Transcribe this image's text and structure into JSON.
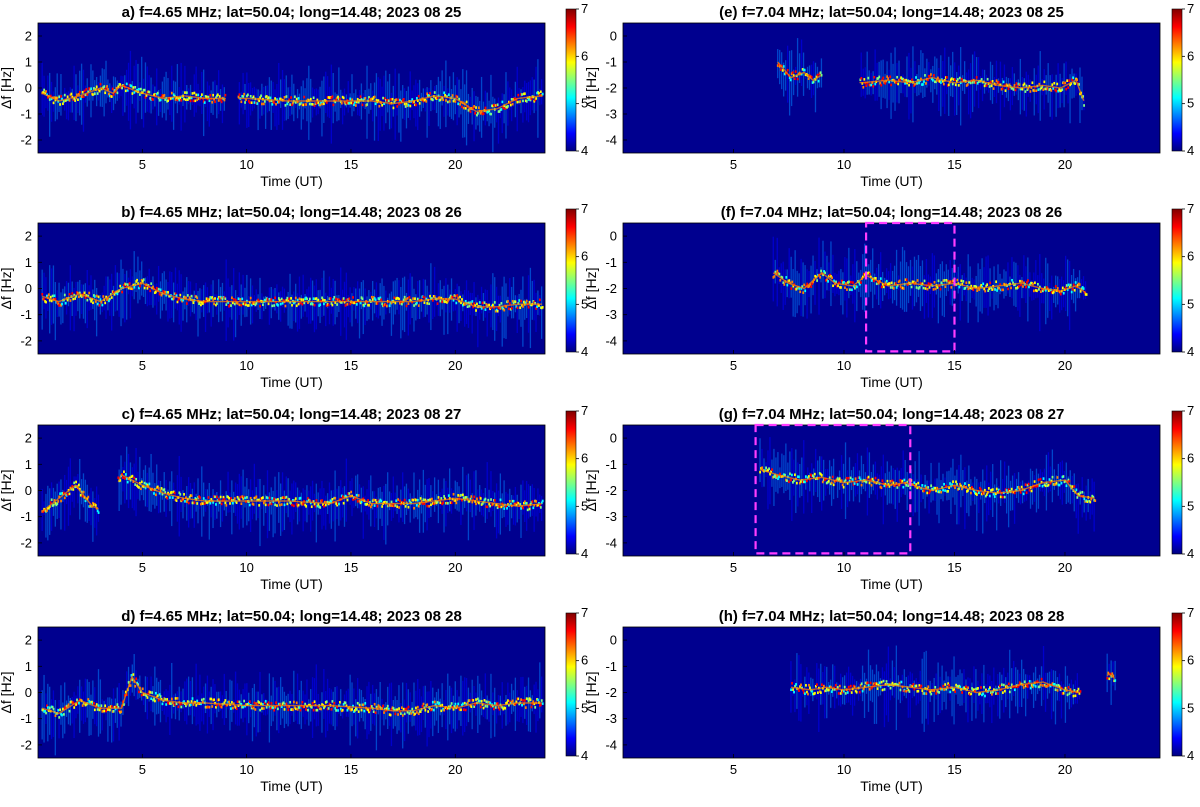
{
  "figure": {
    "colormap": [
      "#00007f",
      "#0000ff",
      "#0080ff",
      "#00ffff",
      "#80ff80",
      "#ffff00",
      "#ff8000",
      "#ff0000",
      "#800000"
    ],
    "background_color": "#00008f",
    "highlight_box_color": "#ff3dff"
  },
  "chart_data": [
    {
      "id": "a",
      "type": "heatmap",
      "title": "a) f=4.65 MHz;  lat=50.04; long=14.48; 2023 08 25",
      "xlabel": "Time (UT)",
      "ylabel": "Δf [Hz]",
      "xlim": [
        0,
        24.3
      ],
      "ylim": [
        -2.5,
        2.5
      ],
      "xticks": [
        5,
        10,
        15,
        20
      ],
      "xtick_labels": [
        "5",
        "10",
        "15",
        "20"
      ],
      "yticks": [
        -2,
        -1,
        0,
        1,
        2
      ],
      "ytick_labels": [
        "-2",
        "-1",
        "0",
        "1",
        "2"
      ],
      "colorbar": {
        "min": 4,
        "max": 7,
        "ticks": [
          4,
          5,
          6,
          7
        ],
        "tick_labels": [
          "4",
          "5",
          "6",
          "7"
        ]
      },
      "trace": {
        "t": [
          0.2,
          1,
          2,
          3,
          3.6,
          4,
          5,
          6,
          7,
          8,
          9,
          10,
          12,
          14,
          16,
          17,
          18,
          19,
          20,
          21,
          22,
          23,
          24.2
        ],
        "df": [
          -0.2,
          -0.5,
          -0.3,
          0.0,
          -0.2,
          0.1,
          -0.2,
          -0.4,
          -0.3,
          -0.4,
          -0.4,
          -0.4,
          -0.5,
          -0.5,
          -0.5,
          -0.6,
          -0.5,
          -0.3,
          -0.4,
          -0.9,
          -0.8,
          -0.4,
          -0.3
        ],
        "gaps": [
          [
            9.0,
            9.6
          ]
        ]
      },
      "highlight_boxes": []
    },
    {
      "id": "b",
      "type": "heatmap",
      "title": "b) f=4.65 MHz;  lat=50.04; long=14.48; 2023 08 26",
      "xlabel": "Time (UT)",
      "ylabel": "Δf [Hz]",
      "xlim": [
        0,
        24.3
      ],
      "ylim": [
        -2.5,
        2.5
      ],
      "xticks": [
        5,
        10,
        15,
        20
      ],
      "xtick_labels": [
        "5",
        "10",
        "15",
        "20"
      ],
      "yticks": [
        -2,
        -1,
        0,
        1,
        2
      ],
      "ytick_labels": [
        "-2",
        "-1",
        "0",
        "1",
        "2"
      ],
      "colorbar": {
        "min": 4,
        "max": 7,
        "ticks": [
          4,
          5,
          6,
          7
        ],
        "tick_labels": [
          "4",
          "5",
          "6",
          "7"
        ]
      },
      "trace": {
        "t": [
          0.2,
          1,
          2,
          3,
          4,
          5,
          6,
          7,
          8,
          10,
          12,
          14,
          16,
          18,
          19,
          20,
          21,
          22,
          23,
          24.2
        ],
        "df": [
          -0.3,
          -0.5,
          -0.2,
          -0.5,
          0.0,
          0.2,
          -0.2,
          -0.4,
          -0.5,
          -0.5,
          -0.5,
          -0.5,
          -0.5,
          -0.5,
          -0.4,
          -0.4,
          -0.7,
          -0.7,
          -0.6,
          -0.6
        ],
        "gaps": []
      },
      "highlight_boxes": []
    },
    {
      "id": "c",
      "type": "heatmap",
      "title": "c) f=4.65 MHz;  lat=50.04; long=14.48; 2023 08 27",
      "xlabel": "Time (UT)",
      "ylabel": "Δf [Hz]",
      "xlim": [
        0,
        24.3
      ],
      "ylim": [
        -2.5,
        2.5
      ],
      "xticks": [
        5,
        10,
        15,
        20
      ],
      "xtick_labels": [
        "5",
        "10",
        "15",
        "20"
      ],
      "yticks": [
        -2,
        -1,
        0,
        1,
        2
      ],
      "ytick_labels": [
        "-2",
        "-1",
        "0",
        "1",
        "2"
      ],
      "colorbar": {
        "min": 4,
        "max": 7,
        "ticks": [
          4,
          5,
          6,
          7
        ],
        "tick_labels": [
          "4",
          "5",
          "6",
          "7"
        ]
      },
      "trace": {
        "t": [
          0.2,
          1,
          1.8,
          2.6,
          3.2,
          4,
          5,
          6,
          7,
          8,
          10,
          12,
          14,
          15,
          16,
          18,
          20,
          22,
          23,
          24.2
        ],
        "df": [
          -0.8,
          -0.3,
          0.2,
          -0.6,
          -0.8,
          0.6,
          0.2,
          -0.1,
          -0.3,
          -0.4,
          -0.4,
          -0.4,
          -0.5,
          -0.2,
          -0.5,
          -0.5,
          -0.3,
          -0.5,
          -0.6,
          -0.5
        ],
        "gaps": [
          [
            2.9,
            3.8
          ]
        ]
      },
      "highlight_boxes": []
    },
    {
      "id": "d",
      "type": "heatmap",
      "title": "d) f=4.65 MHz;  lat=50.04; long=14.48; 2023 08 28",
      "xlabel": "Time (UT)",
      "ylabel": "Δf [Hz]",
      "xlim": [
        0,
        24.3
      ],
      "ylim": [
        -2.5,
        2.5
      ],
      "xticks": [
        5,
        10,
        15,
        20
      ],
      "xtick_labels": [
        "5",
        "10",
        "15",
        "20"
      ],
      "yticks": [
        -2,
        -1,
        0,
        1,
        2
      ],
      "ytick_labels": [
        "-2",
        "-1",
        "0",
        "1",
        "2"
      ],
      "colorbar": {
        "min": 4,
        "max": 7,
        "ticks": [
          4,
          5,
          6,
          7
        ],
        "tick_labels": [
          "4",
          "5",
          "6",
          "7"
        ]
      },
      "trace": {
        "t": [
          0.2,
          1,
          2,
          3,
          4,
          4.5,
          5,
          6,
          7,
          8,
          10,
          12,
          14,
          16,
          17,
          18,
          19,
          20,
          21,
          22,
          23,
          24.2
        ],
        "df": [
          -0.6,
          -0.8,
          -0.3,
          -0.6,
          -0.6,
          0.6,
          0.0,
          -0.3,
          -0.4,
          -0.4,
          -0.5,
          -0.5,
          -0.5,
          -0.6,
          -0.7,
          -0.7,
          -0.5,
          -0.6,
          -0.4,
          -0.5,
          -0.4,
          -0.4
        ],
        "gaps": []
      },
      "highlight_boxes": []
    },
    {
      "id": "e",
      "type": "heatmap",
      "title": "(e) f=7.04 MHz;  lat=50.04; long=14.48; 2023 08 25",
      "xlabel": "Time (UT)",
      "ylabel": "Δf [Hz]",
      "xlim": [
        0,
        24.3
      ],
      "ylim": [
        -4.5,
        0.5
      ],
      "xticks": [
        5,
        10,
        15,
        20
      ],
      "xtick_labels": [
        "5",
        "10",
        "15",
        "20"
      ],
      "yticks": [
        -4,
        -3,
        -2,
        -1,
        0
      ],
      "ytick_labels": [
        "-4",
        "-3",
        "-2",
        "-1",
        "0"
      ],
      "colorbar": {
        "min": 4,
        "max": 7,
        "ticks": [
          4,
          5,
          6,
          7
        ],
        "tick_labels": [
          "4",
          "5",
          "6",
          "7"
        ]
      },
      "trace": {
        "t": [
          7.0,
          7.6,
          8.2,
          8.6,
          9.0,
          10.8,
          12,
          13,
          14,
          15,
          16,
          17,
          18,
          19,
          19.8,
          20.5,
          20.9
        ],
        "df": [
          -1.0,
          -1.6,
          -1.4,
          -1.7,
          -1.5,
          -1.8,
          -1.7,
          -1.8,
          -1.6,
          -1.8,
          -1.7,
          -1.9,
          -2.0,
          -1.9,
          -2.0,
          -1.7,
          -2.6
        ],
        "gaps": [
          [
            9.0,
            10.7
          ]
        ]
      },
      "highlight_boxes": []
    },
    {
      "id": "f",
      "type": "heatmap",
      "title": "(f) f=7.04 MHz;  lat=50.04; long=14.48; 2023 08 26",
      "xlabel": "Time (UT)",
      "ylabel": "Δf [Hz]",
      "xlim": [
        0,
        24.3
      ],
      "ylim": [
        -4.5,
        0.5
      ],
      "xticks": [
        5,
        10,
        15,
        20
      ],
      "xtick_labels": [
        "5",
        "10",
        "15",
        "20"
      ],
      "yticks": [
        -4,
        -3,
        -2,
        -1,
        0
      ],
      "ytick_labels": [
        "-4",
        "-3",
        "-2",
        "-1",
        "0"
      ],
      "colorbar": {
        "min": 4,
        "max": 7,
        "ticks": [
          4,
          5,
          6,
          7
        ],
        "tick_labels": [
          "4",
          "5",
          "6",
          "7"
        ]
      },
      "trace": {
        "t": [
          6.8,
          7.5,
          8.2,
          9,
          9.6,
          10.4,
          11,
          12,
          13,
          14,
          15,
          16,
          17,
          18,
          19,
          19.8,
          20.5,
          21
        ],
        "df": [
          -1.4,
          -1.8,
          -2.0,
          -1.4,
          -1.8,
          -1.9,
          -1.5,
          -1.9,
          -1.8,
          -1.9,
          -1.8,
          -2.0,
          -1.9,
          -1.8,
          -2.0,
          -2.1,
          -1.9,
          -2.2
        ],
        "gaps": []
      },
      "highlight_boxes": [
        {
          "t0": 11.0,
          "t1": 15.0,
          "df0": -4.4,
          "df1": 0.5
        }
      ]
    },
    {
      "id": "g",
      "type": "heatmap",
      "title": "(g) f=7.04 MHz;  lat=50.04; long=14.48; 2023 08 27",
      "xlabel": "Time (UT)",
      "ylabel": "Δf [Hz]",
      "xlim": [
        0,
        24.3
      ],
      "ylim": [
        -4.5,
        0.5
      ],
      "xticks": [
        5,
        10,
        15,
        20
      ],
      "xtick_labels": [
        "5",
        "10",
        "15",
        "20"
      ],
      "yticks": [
        -4,
        -3,
        -2,
        -1,
        0
      ],
      "ytick_labels": [
        "-4",
        "-3",
        "-2",
        "-1",
        "0"
      ],
      "colorbar": {
        "min": 4,
        "max": 7,
        "ticks": [
          4,
          5,
          6,
          7
        ],
        "tick_labels": [
          "4",
          "5",
          "6",
          "7"
        ]
      },
      "trace": {
        "t": [
          6.2,
          7,
          8,
          9,
          10,
          11,
          12,
          12.8,
          13.5,
          14,
          15,
          16,
          17,
          18,
          19,
          20,
          20.6,
          21.4
        ],
        "df": [
          -1.2,
          -1.4,
          -1.6,
          -1.5,
          -1.7,
          -1.6,
          -1.8,
          -1.7,
          -1.9,
          -2.0,
          -1.8,
          -2.0,
          -2.1,
          -2.0,
          -1.7,
          -1.6,
          -2.2,
          -2.3
        ],
        "gaps": []
      },
      "highlight_boxes": [
        {
          "t0": 6.0,
          "t1": 13.0,
          "df0": -4.4,
          "df1": 0.5
        }
      ]
    },
    {
      "id": "h",
      "type": "heatmap",
      "title": "(h) f=7.04 MHz;  lat=50.04; long=14.48; 2023 08 28",
      "xlabel": "Time (UT)",
      "ylabel": "Δf [Hz]",
      "xlim": [
        0,
        24.3
      ],
      "ylim": [
        -4.5,
        0.5
      ],
      "xticks": [
        5,
        10,
        15,
        20
      ],
      "xtick_labels": [
        "5",
        "10",
        "15",
        "20"
      ],
      "yticks": [
        -4,
        -3,
        -2,
        -1,
        0
      ],
      "ytick_labels": [
        "-4",
        "-3",
        "-2",
        "-1",
        "0"
      ],
      "colorbar": {
        "min": 4,
        "max": 7,
        "ticks": [
          4,
          5,
          6,
          7
        ],
        "tick_labels": [
          "4",
          "5",
          "6",
          "7"
        ]
      },
      "trace": {
        "t": [
          7.6,
          8.5,
          9.2,
          10,
          11,
          12,
          13,
          14,
          15,
          16,
          17,
          18,
          19,
          20,
          20.6,
          22.0,
          22.3
        ],
        "df": [
          -1.8,
          -1.9,
          -1.8,
          -1.9,
          -1.8,
          -1.7,
          -1.8,
          -1.9,
          -1.8,
          -2.0,
          -1.9,
          -1.7,
          -1.6,
          -1.9,
          -2.0,
          -1.3,
          -1.5
        ],
        "gaps": [
          [
            20.7,
            21.9
          ]
        ]
      },
      "highlight_boxes": []
    }
  ]
}
